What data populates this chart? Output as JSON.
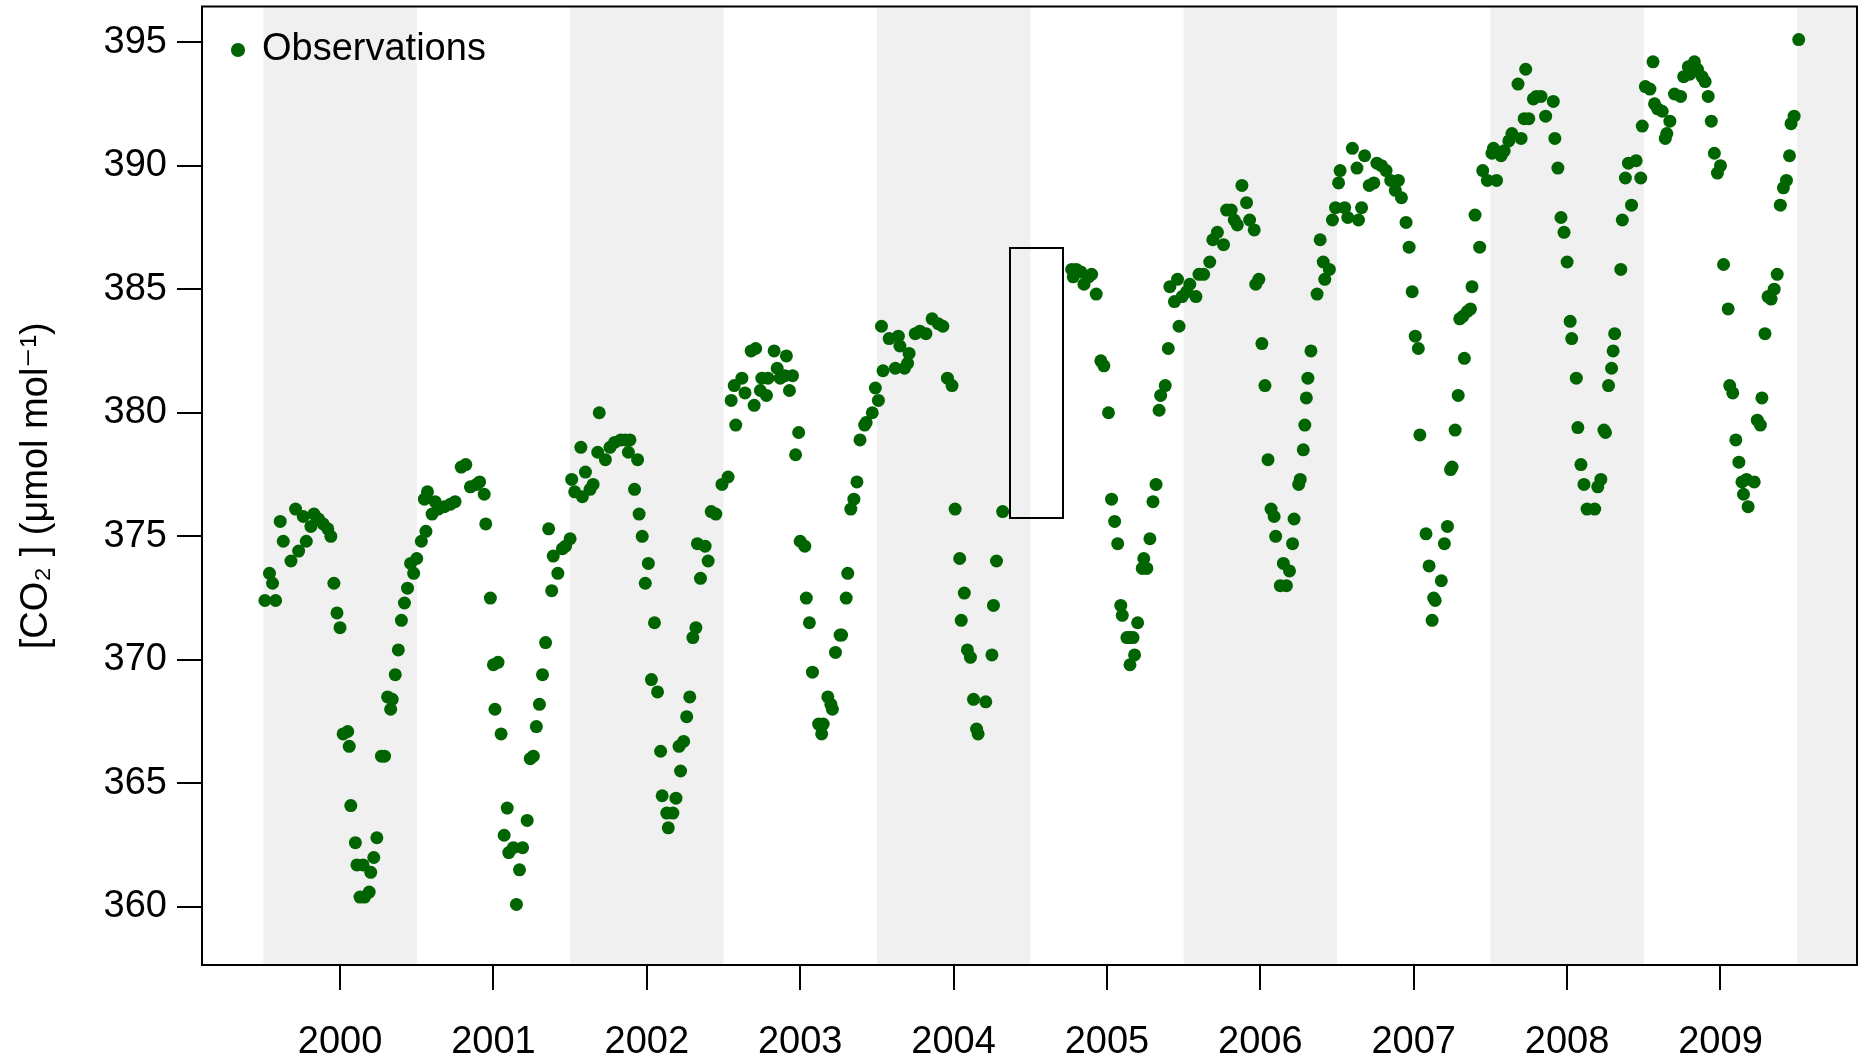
{
  "chart_data": {
    "type": "scatter",
    "ylabel": "[CO₂ ] (μmol mol⁻¹)",
    "legend": "top left",
    "marker": "circle",
    "xlim": [
      1999.1,
      2009.89
    ],
    "xticks": [
      2000,
      2001,
      2002,
      2003,
      2004,
      2005,
      2006,
      2007,
      2008,
      2009
    ],
    "ylim": [
      357.65,
      396.44
    ],
    "yticks": [
      360,
      365,
      370,
      375,
      380,
      385,
      390,
      395
    ],
    "bands": [
      {
        "axis": "x",
        "from": 1999.5,
        "to": 2000.5,
        "color": "#f0f0f0"
      },
      {
        "axis": "x",
        "from": 2001.5,
        "to": 2002.5,
        "color": "#f0f0f0"
      },
      {
        "axis": "x",
        "from": 2003.5,
        "to": 2004.5,
        "color": "#f0f0f0"
      },
      {
        "axis": "x",
        "from": 2005.5,
        "to": 2006.5,
        "color": "#f0f0f0"
      },
      {
        "axis": "x",
        "from": 2007.5,
        "to": 2008.5,
        "color": "#f0f0f0"
      },
      {
        "axis": "x",
        "from": 2009.5,
        "to": 2009.89,
        "color": "#f0f0f0"
      }
    ],
    "x": [
      1999.51,
      1999.58,
      1999.54,
      1999.56,
      1999.61,
      1999.63,
      1999.68,
      1999.71,
      1999.73,
      1999.76,
      1999.78,
      1999.81,
      1999.83,
      1999.86,
      1999.89,
      1999.92,
      1999.94,
      1999.96,
      1999.98,
      2000.0,
      2000.02,
      2000.05,
      2000.06,
      2000.07,
      2000.1,
      2000.11,
      2000.13,
      2000.16,
      2000.15,
      2000.19,
      2000.2,
      2000.22,
      2000.24,
      2000.27,
      2000.29,
      2000.31,
      2000.33,
      2000.34,
      2000.36,
      2000.38,
      2000.4,
      2000.42,
      2000.44,
      2000.46,
      2000.48,
      2000.5,
      2000.53,
      2000.56,
      2000.55,
      2000.57,
      2000.6,
      2000.62,
      2000.64,
      2000.68,
      2000.72,
      2000.75,
      2000.79,
      2000.82,
      2000.85,
      2000.89,
      2000.91,
      2000.94,
      2000.95,
      2000.98,
      2001.0,
      2001.03,
      2001.01,
      2001.05,
      2001.09,
      2001.07,
      2001.1,
      2001.13,
      2001.17,
      2001.19,
      2001.22,
      2001.15,
      2001.24,
      2001.26,
      2001.28,
      2001.3,
      2001.32,
      2001.34,
      2001.38,
      2001.42,
      2001.39,
      2001.36,
      2001.45,
      2001.47,
      2001.5,
      2001.51,
      2001.53,
      2001.57,
      2001.58,
      2001.6,
      2001.63,
      2001.65,
      2001.69,
      2001.68,
      2001.73,
      2001.76,
      2001.79,
      2001.83,
      2001.86,
      2001.89,
      2001.88,
      2001.94,
      2001.92,
      2001.95,
      2001.97,
      2002.01,
      2001.99,
      2002.05,
      2002.03,
      2002.07,
      2002.09,
      2002.1,
      2002.19,
      2002.13,
      2002.17,
      2002.14,
      2002.22,
      2002.21,
      2002.24,
      2002.26,
      2002.28,
      2002.3,
      2002.32,
      2002.35,
      2002.4,
      2002.33,
      2002.38,
      2002.42,
      2002.45,
      2002.49,
      2002.53,
      2002.58,
      2002.55,
      2002.57,
      2002.62,
      2002.64,
      2002.68,
      2002.71,
      2002.7,
      2002.74,
      2002.75,
      2002.78,
      2002.79,
      2002.83,
      2002.85,
      2002.87,
      2002.91,
      2002.9,
      2002.95,
      2002.93,
      2002.99,
      2002.97,
      2003.0,
      2003.03,
      2003.04,
      2003.06,
      2003.08,
      2003.12,
      2003.15,
      2003.14,
      2003.18,
      2003.2,
      2003.21,
      2003.23,
      2003.26,
      2003.27,
      2003.3,
      2003.31,
      2003.33,
      2003.35,
      2003.37,
      2003.39,
      2003.42,
      2003.43,
      2003.47,
      2003.51,
      2003.49,
      2003.53,
      2003.54,
      2003.58,
      2003.62,
      2003.64,
      2003.65,
      2003.68,
      2003.7,
      2003.71,
      2003.75,
      2003.78,
      2003.82,
      2003.86,
      2003.9,
      2003.93,
      2003.96,
      2003.99,
      2004.01,
      2004.04,
      2004.07,
      2004.05,
      2004.09,
      2004.11,
      2004.13,
      2004.21,
      2004.15,
      2004.16,
      2004.25,
      2004.26,
      2004.28,
      2004.32,
      2004.77,
      2004.8,
      2004.78,
      2004.83,
      2004.85,
      2004.88,
      2004.9,
      2004.93,
      2004.96,
      2004.98,
      2005.01,
      2005.03,
      2005.05,
      2005.07,
      2005.09,
      2005.1,
      2005.15,
      2005.13,
      2005.17,
      2005.15,
      2005.18,
      2005.2,
      2005.24,
      2005.23,
      2005.26,
      2005.28,
      2005.3,
      2005.32,
      2005.34,
      2005.35,
      2005.38,
      2005.4,
      2005.47,
      2005.44,
      2005.41,
      2005.46,
      2005.49,
      2005.52,
      2005.54,
      2005.58,
      2005.6,
      2005.63,
      2005.67,
      2005.69,
      2005.72,
      2005.76,
      2005.78,
      2005.81,
      2005.83,
      2005.85,
      2005.88,
      2005.91,
      2005.93,
      2005.96,
      2005.97,
      2005.99,
      2006.01,
      2006.03,
      2006.05,
      2006.07,
      2006.09,
      2006.1,
      2006.13,
      2006.15,
      2006.17,
      2006.19,
      2006.21,
      2006.22,
      2006.25,
      2006.26,
      2006.28,
      2006.29,
      2006.3,
      2006.31,
      2006.33,
      2006.37,
      2006.42,
      2006.41,
      2006.45,
      2006.39,
      2006.47,
      2006.49,
      2006.52,
      2006.51,
      2006.57,
      2006.55,
      2006.6,
      2006.63,
      2006.64,
      2006.66,
      2006.68,
      2006.71,
      2006.74,
      2006.76,
      2006.79,
      2006.82,
      2006.85,
      2006.88,
      2006.9,
      2006.92,
      2006.95,
      2006.97,
      2006.99,
      2007.01,
      2007.03,
      2007.04,
      2007.08,
      2007.1,
      2007.13,
      2007.14,
      2007.12,
      2007.18,
      2007.2,
      2007.22,
      2007.24,
      2007.25,
      2007.27,
      2007.29,
      2007.33,
      2007.3,
      2007.32,
      2007.35,
      2007.37,
      2007.38,
      2007.43,
      2007.4,
      2007.45,
      2007.48,
      2007.51,
      2007.52,
      2007.54,
      2007.57,
      2007.59,
      2007.62,
      2007.64,
      2007.68,
      2007.7,
      2007.72,
      2007.73,
      2007.75,
      2007.78,
      2007.8,
      2007.83,
      2007.86,
      2007.91,
      2007.92,
      2007.94,
      2007.96,
      2007.98,
      2008.0,
      2008.02,
      2008.03,
      2008.06,
      2008.07,
      2008.09,
      2008.11,
      2008.13,
      2008.18,
      2008.2,
      2008.22,
      2008.24,
      2008.25,
      2008.27,
      2008.29,
      2008.3,
      2008.31,
      2008.35,
      2008.36,
      2008.42,
      2008.38,
      2008.45,
      2008.4,
      2008.48,
      2008.49,
      2008.51,
      2008.54,
      2008.56,
      2008.57,
      2008.59,
      2008.62,
      2008.64,
      2008.65,
      2008.67,
      2008.7,
      2008.74,
      2008.76,
      2008.79,
      2008.83,
      2008.8,
      2008.85,
      2008.88,
      2008.9,
      2008.92,
      2008.94,
      2008.96,
      2009.0,
      2008.98,
      2009.02,
      2009.05,
      2009.06,
      2009.08,
      2009.1,
      2009.12,
      2009.14,
      2009.17,
      2009.15,
      2009.18,
      2009.22,
      2009.24,
      2009.26,
      2009.27,
      2009.29,
      2009.31,
      2009.33,
      2009.35,
      2009.37,
      2009.39,
      2009.41,
      2009.43,
      2009.45,
      2009.46,
      2009.48,
      2009.51
    ],
    "series": [
      {
        "name": "Observations",
        "color": "#006400",
        "values": [
          372.4,
          372.4,
          373.5,
          373.1,
          375.6,
          374.8,
          374.0,
          376.1,
          374.4,
          375.8,
          374.8,
          375.4,
          375.9,
          375.7,
          375.5,
          375.3,
          375.0,
          373.1,
          371.9,
          371.3,
          367.0,
          367.1,
          366.5,
          364.1,
          362.6,
          361.7,
          360.4,
          360.4,
          361.7,
          360.6,
          361.4,
          362.0,
          362.8,
          366.1,
          366.1,
          368.5,
          368.0,
          368.4,
          369.4,
          370.4,
          371.6,
          372.3,
          372.9,
          373.9,
          373.5,
          374.1,
          374.8,
          375.2,
          376.5,
          376.8,
          375.9,
          376.4,
          376.1,
          376.2,
          376.3,
          376.4,
          377.8,
          377.9,
          377.0,
          377.1,
          377.2,
          376.7,
          375.5,
          372.5,
          369.8,
          369.9,
          368.0,
          367.0,
          364.0,
          362.9,
          362.2,
          362.4,
          361.5,
          362.4,
          363.5,
          360.1,
          366.0,
          366.1,
          367.3,
          368.2,
          369.4,
          370.7,
          372.8,
          373.5,
          374.2,
          375.3,
          374.5,
          374.6,
          374.9,
          377.3,
          376.8,
          378.6,
          376.6,
          377.6,
          376.9,
          377.1,
          380.0,
          378.4,
          378.1,
          378.6,
          378.8,
          378.9,
          378.9,
          378.9,
          378.4,
          378.1,
          376.9,
          375.9,
          375.0,
          373.9,
          373.1,
          371.5,
          369.2,
          368.7,
          366.3,
          364.5,
          364.4,
          363.8,
          363.8,
          363.2,
          365.5,
          366.5,
          366.7,
          367.7,
          368.5,
          370.9,
          371.3,
          373.3,
          374.0,
          374.7,
          374.6,
          376.0,
          375.9,
          377.1,
          377.4,
          379.5,
          380.5,
          381.1,
          381.4,
          380.8,
          382.5,
          382.6,
          380.3,
          380.9,
          381.4,
          380.7,
          381.4,
          382.5,
          381.8,
          381.4,
          382.3,
          381.5,
          381.5,
          380.9,
          379.2,
          378.3,
          374.8,
          374.6,
          372.5,
          371.5,
          369.5,
          367.4,
          367.4,
          367.0,
          368.5,
          368.2,
          368.0,
          370.3,
          371.0,
          371.0,
          372.5,
          373.5,
          376.1,
          376.5,
          377.2,
          378.9,
          379.5,
          379.6,
          380.0,
          380.5,
          381.0,
          383.5,
          381.7,
          383.0,
          381.8,
          383.1,
          382.7,
          381.8,
          382.0,
          382.4,
          383.2,
          383.3,
          383.2,
          383.8,
          383.6,
          383.5,
          381.4,
          381.1,
          376.1,
          374.1,
          372.7,
          371.6,
          370.4,
          370.1,
          368.4,
          368.3,
          367.2,
          367.0,
          370.2,
          372.2,
          374.0,
          376.0,
          385.8,
          385.8,
          385.5,
          385.7,
          385.2,
          385.5,
          385.6,
          384.8,
          382.1,
          381.9,
          380.0,
          376.5,
          375.6,
          374.7,
          372.2,
          371.8,
          370.9,
          370.9,
          370.9,
          369.8,
          370.2,
          371.5,
          374.1,
          373.7,
          373.7,
          374.9,
          376.4,
          377.1,
          380.1,
          380.7,
          381.1,
          382.6,
          383.5,
          384.5,
          385.1,
          385.4,
          384.7,
          384.9,
          385.2,
          384.7,
          385.6,
          385.6,
          386.1,
          387.0,
          387.3,
          386.8,
          388.2,
          388.2,
          387.8,
          387.6,
          389.2,
          388.5,
          387.8,
          387.4,
          385.2,
          385.4,
          382.8,
          381.1,
          378.1,
          376.1,
          375.8,
          375.0,
          373.0,
          373.9,
          373.0,
          373.6,
          374.7,
          375.7,
          377.1,
          377.3,
          378.5,
          379.5,
          380.6,
          381.4,
          382.5,
          384.8,
          385.4,
          386.1,
          385.8,
          387.0,
          387.8,
          388.3,
          389.8,
          389.3,
          387.9,
          388.3,
          390.7,
          389.9,
          387.8,
          388.3,
          390.4,
          389.2,
          389.3,
          390.1,
          390.0,
          389.8,
          389.4,
          389.0,
          389.4,
          388.7,
          387.7,
          386.7,
          384.9,
          383.1,
          382.6,
          379.1,
          375.1,
          373.8,
          372.5,
          372.4,
          371.6,
          373.2,
          374.7,
          375.4,
          377.7,
          377.8,
          379.3,
          380.7,
          382.2,
          383.8,
          383.9,
          384.1,
          384.2,
          385.1,
          386.7,
          388.0,
          389.8,
          389.4,
          390.5,
          390.7,
          389.4,
          390.4,
          390.6,
          391.0,
          391.3,
          393.3,
          391.1,
          391.9,
          393.9,
          391.9,
          392.7,
          392.8,
          392.8,
          392.0,
          392.6,
          391.1,
          389.9,
          387.9,
          387.3,
          386.1,
          383.7,
          383.0,
          381.4,
          379.4,
          377.9,
          377.1,
          376.1,
          376.1,
          377.0,
          377.3,
          379.3,
          379.2,
          381.1,
          381.8,
          382.5,
          383.2,
          385.8,
          387.8,
          388.4,
          389.5,
          390.2,
          390.1,
          389.5,
          391.6,
          393.2,
          393.1,
          394.2,
          392.5,
          392.3,
          392.2,
          391.1,
          391.3,
          391.8,
          392.9,
          392.8,
          393.6,
          394.0,
          394.2,
          393.7,
          393.9,
          393.6,
          393.4,
          392.8,
          391.8,
          390.5,
          390.0,
          389.7,
          386.0,
          384.2,
          381.1,
          380.8,
          378.9,
          378.0,
          377.2,
          377.3,
          376.7,
          376.2,
          377.2,
          379.7,
          379.5,
          380.6,
          383.2,
          384.7,
          384.6,
          385.0,
          385.6,
          388.4,
          389.1,
          389.4,
          390.4,
          391.7,
          392.0,
          395.1
        ]
      }
    ]
  }
}
